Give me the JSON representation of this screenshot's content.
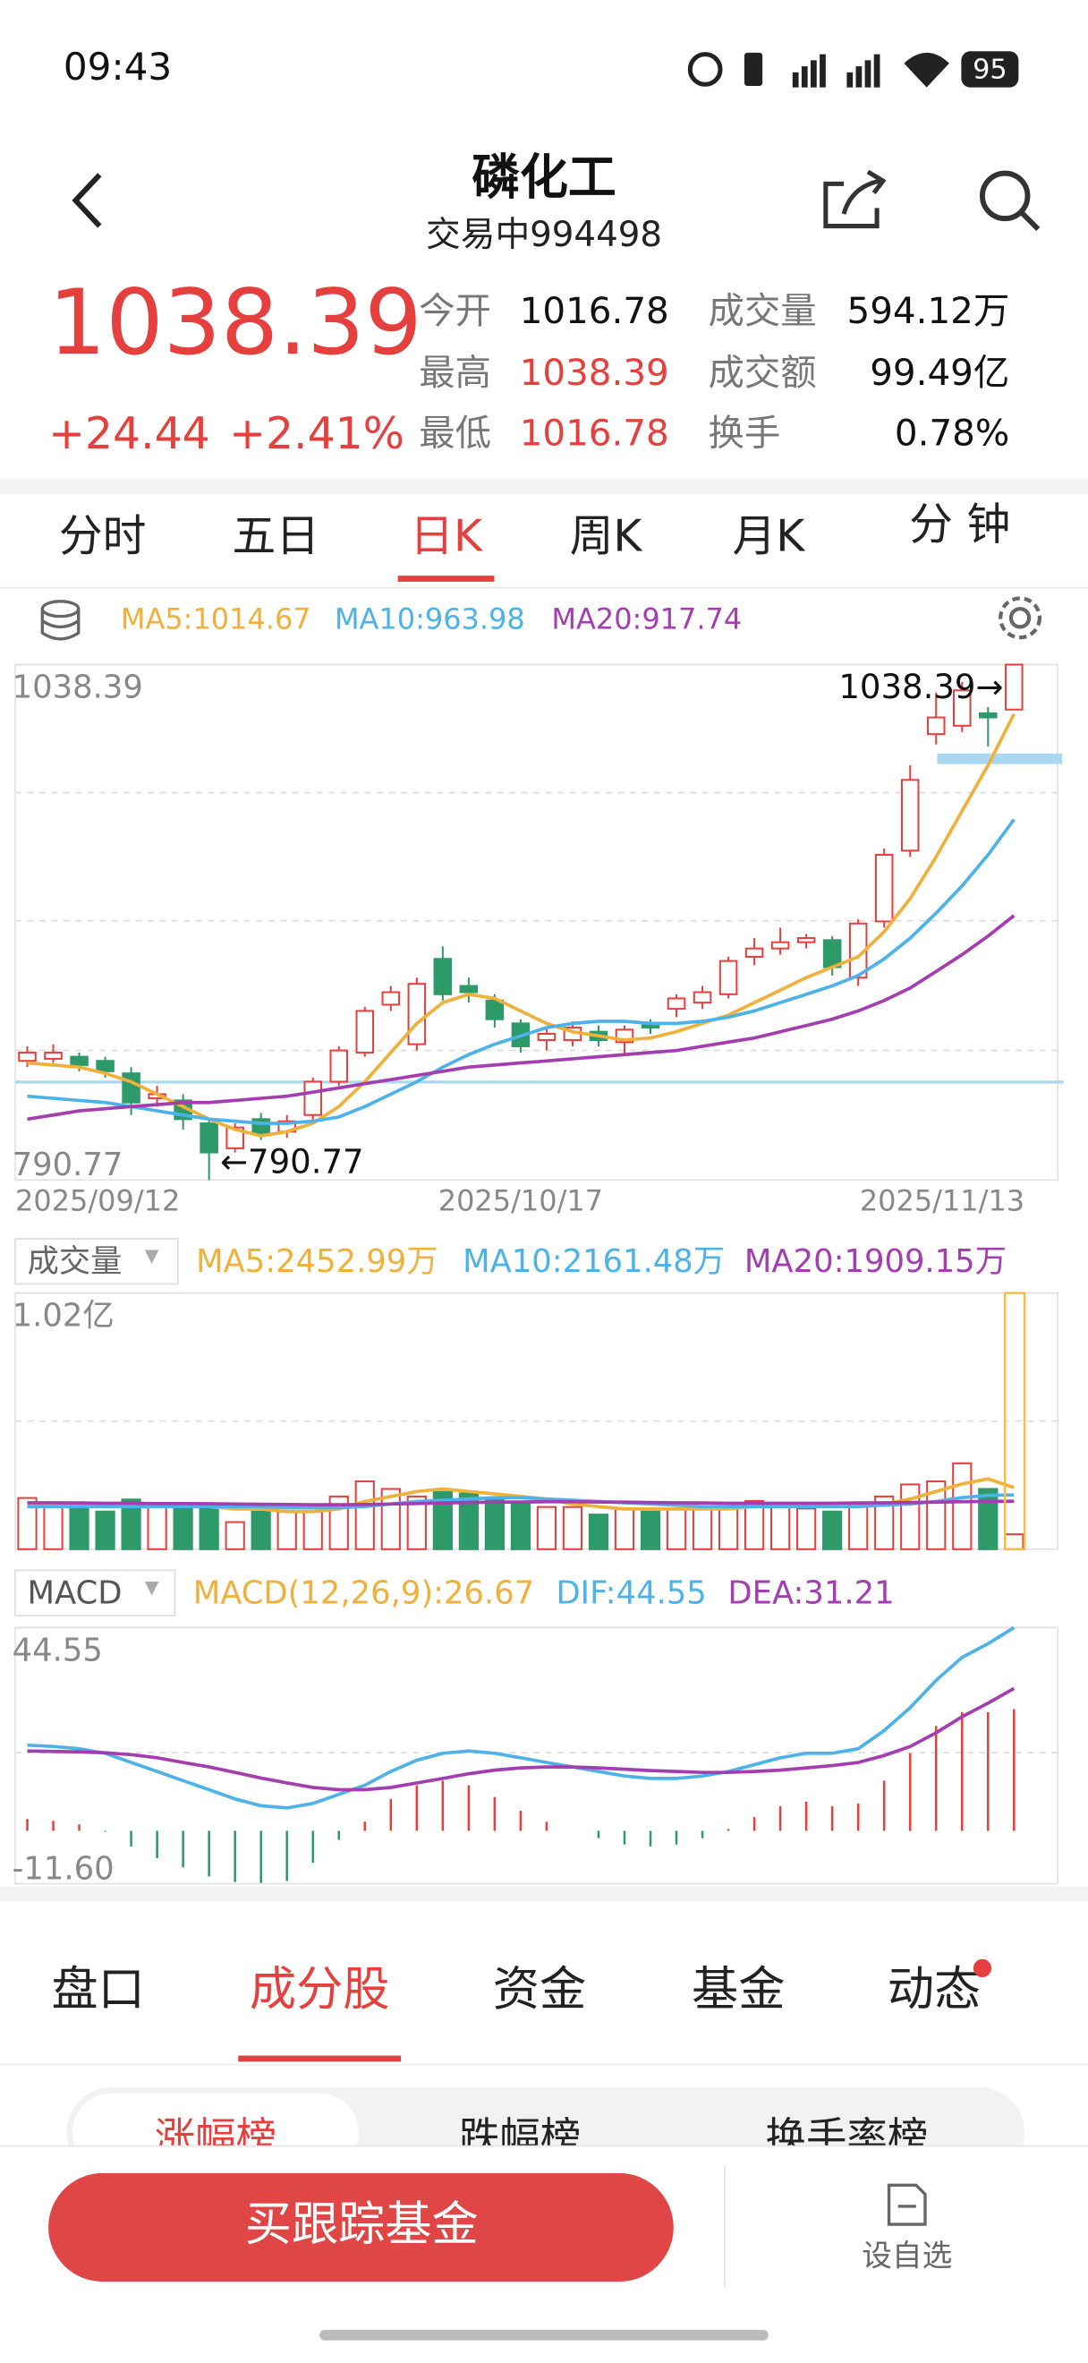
{
  "status_bar": {
    "time": "09:43",
    "battery": "95"
  },
  "header": {
    "title": "磷化工",
    "subtitle": "交易中994498"
  },
  "quote": {
    "price": "1038.39",
    "change": "+24.44",
    "change_pct": "+2.41%",
    "stats": [
      {
        "label": "今开",
        "value": "1016.78"
      },
      {
        "label": "最高",
        "value": "1038.39"
      },
      {
        "label": "最低",
        "value": "1016.78"
      },
      {
        "label": "成交量",
        "value": "594.12万"
      },
      {
        "label": "成交额",
        "value": "99.49亿"
      },
      {
        "label": "换手",
        "value": "0.78%"
      }
    ]
  },
  "period_tabs": [
    "分时",
    "五日",
    "日K",
    "周K",
    "月K",
    "分 钟"
  ],
  "chart_data": [
    {
      "type": "candlestick",
      "ylim": [
        790.77,
        1038.39
      ],
      "yticks": [
        790.77,
        1038.39
      ],
      "up_color": "#e5403d",
      "down_color": "#2e9a6a",
      "categories": [
        "2025/09/12",
        null,
        null,
        null,
        null,
        null,
        null,
        null,
        null,
        null,
        null,
        null,
        null,
        null,
        null,
        null,
        null,
        null,
        null,
        "2025/10/17",
        null,
        null,
        null,
        null,
        null,
        null,
        null,
        null,
        null,
        null,
        null,
        null,
        null,
        null,
        null,
        null,
        null,
        null,
        "2025/11/13"
      ],
      "open": [
        848,
        849,
        850,
        848,
        842,
        830,
        829,
        818,
        806,
        820,
        814,
        822,
        838,
        852,
        875,
        856,
        897,
        884,
        877,
        866,
        858,
        858,
        862,
        857,
        866,
        873,
        876,
        880,
        898,
        902,
        905,
        906,
        888,
        915,
        949,
        1005,
        1009,
        1015,
        1016.78
      ],
      "high": [
        855,
        856,
        852,
        850,
        845,
        836,
        832,
        820,
        818,
        823,
        822,
        840,
        855,
        874,
        884,
        888,
        903,
        888,
        880,
        868,
        864,
        867,
        865,
        865,
        868,
        880,
        884,
        898,
        907,
        912,
        909,
        908,
        916,
        950,
        990,
        1025,
        1030,
        1018,
        1038.39
      ],
      "low": [
        845,
        847,
        843,
        840,
        822,
        826,
        815,
        790.77,
        804,
        810,
        811,
        818,
        836,
        850,
        872,
        853,
        877,
        876,
        864,
        852,
        853,
        855,
        855,
        851,
        861,
        869,
        873,
        878,
        894,
        899,
        902,
        889,
        884,
        912,
        946,
        1000,
        1006,
        999,
        1016.78
      ],
      "close": [
        852,
        852,
        846,
        843,
        828,
        832,
        820,
        804,
        816,
        813,
        819,
        838,
        853,
        872,
        881,
        885,
        880,
        881,
        868,
        855,
        861,
        864,
        858,
        863,
        864,
        878,
        881,
        896,
        902,
        905,
        907,
        893,
        914,
        947,
        983,
        1013,
        1026,
        1013,
        1038.39
      ],
      "series": [
        {
          "name": "MA5:1014.67",
          "color": "#f0b03c",
          "values": [
            847,
            846,
            845,
            842,
            838,
            832,
            826,
            820,
            815,
            812,
            814,
            818,
            826,
            838,
            852,
            866,
            876,
            880,
            878,
            872,
            866,
            862,
            860,
            858,
            859,
            862,
            866,
            870,
            876,
            882,
            888,
            893,
            898,
            910,
            926,
            946,
            968,
            990,
            1014.67
          ]
        },
        {
          "name": "MA10:963.98",
          "color": "#4db2e8",
          "values": [
            831,
            830,
            829,
            828,
            826,
            824,
            822,
            820,
            819,
            818,
            818,
            819,
            821,
            826,
            832,
            838,
            845,
            851,
            856,
            860,
            864,
            866,
            867,
            867,
            866,
            866,
            867,
            869,
            872,
            876,
            880,
            884,
            889,
            897,
            907,
            919,
            932,
            947,
            963.98
          ]
        },
        {
          "name": "MA20:917.74",
          "color": "#a43db0",
          "values": [
            820,
            822,
            824,
            825,
            826,
            827,
            828,
            828,
            829,
            830,
            831,
            833,
            835,
            837,
            839,
            841,
            843,
            845,
            846,
            847,
            848,
            849,
            850,
            851,
            852,
            853,
            855,
            857,
            859,
            862,
            865,
            868,
            872,
            877,
            883,
            891,
            899,
            908,
            917.74
          ]
        }
      ],
      "annotations": [
        "1038.39→",
        "←790.77"
      ]
    },
    {
      "type": "bar",
      "label": "成交量",
      "ylim": [
        0,
        10200
      ],
      "yticks": [
        {
          "value": 10200,
          "label": "1.02亿"
        }
      ],
      "values": [
        2040,
        1800,
        1680,
        1500,
        1980,
        1680,
        1680,
        1680,
        1080,
        1500,
        1500,
        1500,
        2100,
        2700,
        2400,
        2100,
        2280,
        2220,
        1980,
        1800,
        1680,
        1680,
        1380,
        1620,
        1500,
        1620,
        1620,
        1680,
        1920,
        1680,
        1620,
        1500,
        1800,
        2100,
        2580,
        2700,
        3420,
        2400,
        594.12
      ],
      "series": [
        {
          "name": "MA5:2452.99万",
          "color": "#f0b03c",
          "values": [
            1800,
            1800,
            1800,
            1700,
            1800,
            1700,
            1700,
            1700,
            1600,
            1600,
            1500,
            1500,
            1600,
            1900,
            2100,
            2300,
            2400,
            2300,
            2200,
            2100,
            2000,
            1800,
            1700,
            1600,
            1600,
            1600,
            1600,
            1600,
            1700,
            1700,
            1700,
            1700,
            1700,
            1800,
            2000,
            2300,
            2600,
            2800,
            2452.99
          ]
        },
        {
          "name": "MA10:2161.48万",
          "color": "#4db2e8",
          "values": [
            1700,
            1700,
            1700,
            1700,
            1700,
            1700,
            1700,
            1700,
            1700,
            1700,
            1650,
            1650,
            1650,
            1700,
            1800,
            1900,
            1950,
            2000,
            2050,
            2050,
            2000,
            1950,
            1900,
            1850,
            1800,
            1750,
            1700,
            1700,
            1700,
            1700,
            1700,
            1700,
            1700,
            1750,
            1800,
            1900,
            2050,
            2150,
            2161.48
          ]
        },
        {
          "name": "MA20:1909.15万",
          "color": "#a43db0",
          "values": [
            1850,
            1850,
            1840,
            1830,
            1830,
            1820,
            1820,
            1810,
            1800,
            1790,
            1780,
            1770,
            1770,
            1780,
            1800,
            1820,
            1840,
            1860,
            1870,
            1880,
            1890,
            1890,
            1880,
            1870,
            1860,
            1850,
            1840,
            1830,
            1830,
            1830,
            1830,
            1830,
            1840,
            1850,
            1860,
            1870,
            1890,
            1900,
            1909.15
          ]
        }
      ]
    },
    {
      "type": "macd",
      "label": "MACD",
      "ylim": [
        -11.6,
        44.55
      ],
      "yticks": [
        {
          "value": -11.6,
          "label": "-11.60"
        },
        44.55
      ],
      "histogram": {
        "name": "MACD(12,26,9):26.67",
        "color": "#f0b03c",
        "values": [
          2.6,
          2.2,
          1.4,
          -0.2,
          -3.4,
          -6,
          -8,
          -10,
          -11.2,
          -11.4,
          -11,
          -7,
          -2,
          2,
          7,
          10,
          11,
          10,
          7.4,
          4.4,
          2,
          0,
          -1.6,
          -3,
          -3.4,
          -3,
          -1.6,
          0.4,
          3,
          5.4,
          6.4,
          5.4,
          6,
          11,
          17,
          23,
          26,
          26,
          26.67
        ]
      },
      "series": [
        {
          "name": "DIF:44.55",
          "color": "#4db2e8",
          "values": [
            18.8,
            18.5,
            18,
            17,
            15,
            13,
            11,
            9,
            7,
            5.5,
            5,
            6,
            8,
            10,
            13,
            15.5,
            17,
            17.5,
            17,
            16,
            15,
            14,
            13,
            12,
            11.5,
            11.5,
            12,
            13,
            14.5,
            16,
            17,
            17,
            18,
            22,
            27,
            33,
            38,
            41,
            44.55
          ]
        },
        {
          "name": "DEA:31.21",
          "color": "#a43db0",
          "values": [
            17.5,
            17.4,
            17.3,
            17.1,
            16.7,
            16,
            15,
            14,
            12.8,
            11.6,
            10.5,
            9.5,
            9,
            9,
            9.5,
            10.5,
            11.5,
            12.5,
            13.3,
            13.8,
            14,
            14,
            13.8,
            13.5,
            13.2,
            13,
            12.8,
            12.8,
            13,
            13.3,
            13.8,
            14.3,
            15,
            16.5,
            18.5,
            21.5,
            25,
            28,
            31.21
          ]
        }
      ]
    }
  ],
  "detail_tabs": [
    "盘口",
    "成分股",
    "资金",
    "基金",
    "动态"
  ],
  "rank_tabs": [
    "涨幅榜",
    "跌幅榜",
    "换手率榜"
  ],
  "bottom_bar": {
    "button": "买跟踪基金",
    "watchlist": "设自选"
  }
}
